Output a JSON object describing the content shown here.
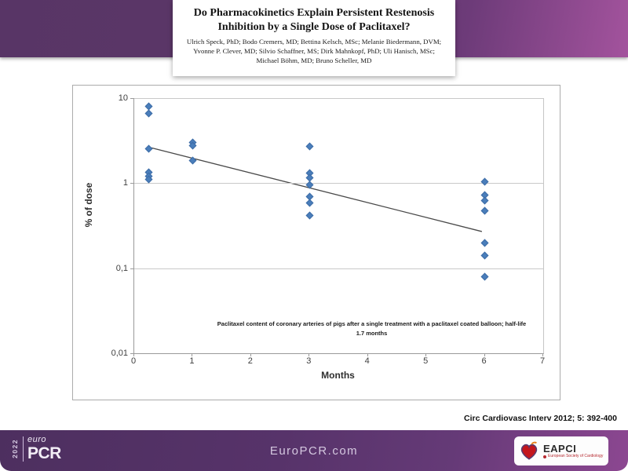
{
  "slide": {
    "title": "Do Pharmacokinetics Explain Persistent Restenosis Inhibition by a Single Dose of Paclitaxel?",
    "authors_lines": [
      "Ulrich Speck, PhD; Bodo Cremers, MD; Bettina Kelsch, MSc; Melanie Biedermann, DVM;",
      "Yvonne P. Clever, MD; Silvio Schaffner, MS; Dirk Mahnkopf, PhD; Uli Hanisch, MSc;",
      "Michael Böhm, MD; Bruno Scheller, MD"
    ],
    "citation": "Circ Cardiovasc Interv 2012; 5: 392-400"
  },
  "footer": {
    "europcr_year": "2022",
    "europcr_euro": "euro",
    "europcr_pcr": "PCR",
    "website": "EuroPCR.com",
    "eapci_label": "EAPCI",
    "eapci_sub": "European Society of Cardiology"
  },
  "colors": {
    "header_purple": "#5c3768",
    "header_magenta": "#a3539d",
    "footer_purple": "#57336a",
    "marker_blue": "#4a7ebb",
    "gridline_gray": "#c9c9c9",
    "trendline_gray": "#4a4a4a",
    "eapci_red": "#c4161c"
  },
  "chart_data": {
    "type": "scatter",
    "title": "",
    "xlabel": "Months",
    "ylabel": "% of dose",
    "caption": "Paclitaxel content of coronary arteries of pigs after a single treatment with a paclitaxel coated balloon;  half-life 1.7 months",
    "x_axis": {
      "min": 0,
      "max": 7,
      "ticks": [
        0,
        1,
        2,
        3,
        4,
        5,
        6,
        7
      ]
    },
    "y_axis": {
      "scale": "log",
      "min": 0.01,
      "max": 10,
      "ticks": [
        {
          "label": "10",
          "value": 10
        },
        {
          "label": "1",
          "value": 1
        },
        {
          "label": "0,1",
          "value": 0.1
        },
        {
          "label": "0,01",
          "value": 0.01
        }
      ]
    },
    "points": [
      [
        0.25,
        8.0
      ],
      [
        0.25,
        6.6
      ],
      [
        0.25,
        2.55
      ],
      [
        0.25,
        1.35
      ],
      [
        0.25,
        1.2
      ],
      [
        0.25,
        1.1
      ],
      [
        1,
        3.0
      ],
      [
        1,
        2.75
      ],
      [
        1,
        1.85
      ],
      [
        3,
        2.7
      ],
      [
        3,
        1.3
      ],
      [
        3,
        1.15
      ],
      [
        3,
        0.95
      ],
      [
        3,
        0.7
      ],
      [
        3,
        0.58
      ],
      [
        3,
        0.42
      ],
      [
        6,
        1.05
      ],
      [
        6,
        0.72
      ],
      [
        6,
        0.62
      ],
      [
        6,
        0.47
      ],
      [
        6,
        0.2
      ],
      [
        6,
        0.14
      ],
      [
        6,
        0.08
      ]
    ],
    "trendline": {
      "x1": 0.25,
      "y1": 2.65,
      "x2": 5.95,
      "y2": 0.27,
      "note": "half-life 1.7 months"
    },
    "legend": "none",
    "grid": "horizontal-only"
  }
}
